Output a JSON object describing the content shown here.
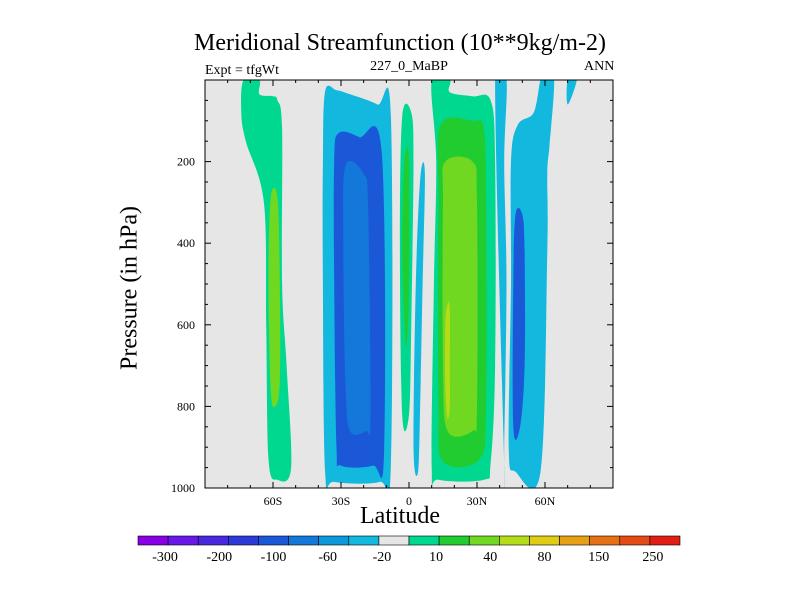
{
  "chart_data": {
    "type": "heatmap",
    "title": "Meridional Streamfunction (10**9kg/m-2)",
    "subtitle": "227_0_MaBP",
    "left_annotation": "Expt = tfgWt",
    "right_annotation": "ANN",
    "xlabel": "Latitude",
    "ylabel": "Pressure (in hPa)",
    "xlim": [
      -90,
      90
    ],
    "ylim": [
      1000,
      0
    ],
    "x_ticks": [
      {
        "value": -60,
        "label": "60S"
      },
      {
        "value": -30,
        "label": "30S"
      },
      {
        "value": 0,
        "label": "0"
      },
      {
        "value": 30,
        "label": "30N"
      },
      {
        "value": 60,
        "label": "60N"
      }
    ],
    "y_ticks": [
      {
        "value": 200,
        "label": "200"
      },
      {
        "value": 400,
        "label": "400"
      },
      {
        "value": 600,
        "label": "600"
      },
      {
        "value": 800,
        "label": "800"
      },
      {
        "value": 1000,
        "label": "1000"
      }
    ],
    "background_color": "#e6e6e6",
    "colorbar": {
      "colors": [
        "#8a00e6",
        "#6a18e8",
        "#4a28e0",
        "#2c3ad8",
        "#1a58d8",
        "#1478da",
        "#0e98dc",
        "#12b8de",
        "#e6e6e6",
        "#00d890",
        "#20cc30",
        "#70d820",
        "#b4dc18",
        "#e0cc14",
        "#e6a014",
        "#e67014",
        "#e44a14",
        "#e01e14"
      ],
      "labels": [
        "-300",
        "-200",
        "-100",
        "-60",
        "-20",
        "10",
        "40",
        "80",
        "150",
        "250"
      ]
    },
    "contours": [
      {
        "level": 10,
        "color": "#00d890",
        "points": [
          [
            -73,
            0
          ],
          [
            -66,
            0
          ],
          [
            -66,
            35
          ],
          [
            -60,
            40
          ],
          [
            -58,
            50
          ],
          [
            -56,
            120
          ],
          [
            -56,
            500
          ],
          [
            -54,
            700
          ],
          [
            -52,
            950
          ],
          [
            -58,
            980
          ],
          [
            -62,
            930
          ],
          [
            -63,
            600
          ],
          [
            -64,
            300
          ],
          [
            -72,
            150
          ],
          [
            -74,
            80
          ]
        ]
      },
      {
        "level": 40,
        "color": "#70d820",
        "points": [
          [
            -61,
            290
          ],
          [
            -58,
            290
          ],
          [
            -57,
            500
          ],
          [
            -57,
            740
          ],
          [
            -59,
            800
          ],
          [
            -61,
            760
          ],
          [
            -62,
            500
          ]
        ]
      },
      {
        "level": -20,
        "color": "#12b8de",
        "points": [
          [
            -37,
            28
          ],
          [
            -32,
            25
          ],
          [
            -26,
            35
          ],
          [
            -14,
            60
          ],
          [
            -8,
            90
          ],
          [
            -8,
            940
          ],
          [
            -13,
            985
          ],
          [
            -33,
            985
          ],
          [
            -37,
            960
          ],
          [
            -38,
            500
          ],
          [
            -38,
            200
          ]
        ]
      },
      {
        "level": -60,
        "color": "#1a58d8",
        "points": [
          [
            -31,
            130
          ],
          [
            -22,
            140
          ],
          [
            -12,
            180
          ],
          [
            -11,
            910
          ],
          [
            -16,
            945
          ],
          [
            -30,
            945
          ],
          [
            -32,
            900
          ],
          [
            -33,
            500
          ],
          [
            -33,
            200
          ]
        ]
      },
      {
        "level": -100,
        "color": "#1478da",
        "points": [
          [
            -28,
            210
          ],
          [
            -20,
            230
          ],
          [
            -18,
            320
          ],
          [
            -17,
            820
          ],
          [
            -19,
            860
          ],
          [
            -26,
            860
          ],
          [
            -28,
            750
          ],
          [
            -29,
            400
          ]
        ]
      },
      {
        "level": 10,
        "color": "#00d890",
        "points": [
          [
            -3,
            90
          ],
          [
            1,
            80
          ],
          [
            2,
            200
          ],
          [
            1,
            600
          ],
          [
            0,
            820
          ],
          [
            -3,
            820
          ],
          [
            -4,
            400
          ]
        ]
      },
      {
        "level": 40,
        "color": "#20cc30",
        "points": [
          [
            -2,
            200
          ],
          [
            0,
            190
          ],
          [
            0,
            500
          ],
          [
            -1,
            650
          ],
          [
            -2,
            600
          ],
          [
            -3,
            400
          ]
        ]
      },
      {
        "level": -20,
        "color": "#12b8de",
        "points": [
          [
            5,
            240
          ],
          [
            7,
            230
          ],
          [
            6,
            500
          ],
          [
            5,
            780
          ],
          [
            4,
            960
          ],
          [
            2,
            900
          ],
          [
            3,
            500
          ]
        ]
      },
      {
        "level": 10,
        "color": "#00d890",
        "points": [
          [
            10,
            0
          ],
          [
            18,
            0
          ],
          [
            18,
            30
          ],
          [
            28,
            40
          ],
          [
            36,
            50
          ],
          [
            38,
            200
          ],
          [
            38,
            700
          ],
          [
            36,
            940
          ],
          [
            33,
            980
          ],
          [
            13,
            980
          ],
          [
            10,
            950
          ],
          [
            11,
            500
          ],
          [
            12,
            200
          ]
        ]
      },
      {
        "level": 40,
        "color": "#20cc30",
        "points": [
          [
            14,
            110
          ],
          [
            28,
            100
          ],
          [
            33,
            120
          ],
          [
            34,
            300
          ],
          [
            34,
            800
          ],
          [
            31,
            930
          ],
          [
            15,
            935
          ],
          [
            13,
            800
          ],
          [
            13,
            300
          ]
        ]
      },
      {
        "level": 80,
        "color": "#70d820",
        "points": [
          [
            16,
            200
          ],
          [
            28,
            200
          ],
          [
            30,
            300
          ],
          [
            30,
            800
          ],
          [
            28,
            860
          ],
          [
            17,
            860
          ],
          [
            15,
            700
          ],
          [
            15,
            300
          ]
        ]
      },
      {
        "level": 150,
        "color": "#b4dc18",
        "points": [
          [
            17,
            550
          ],
          [
            18,
            560
          ],
          [
            18,
            700
          ],
          [
            18,
            800
          ],
          [
            17,
            830
          ],
          [
            16,
            750
          ],
          [
            16,
            600
          ]
        ]
      },
      {
        "level": -20,
        "color": "#12b8de",
        "points": [
          [
            38,
            0
          ],
          [
            43,
            0
          ],
          [
            42,
            200
          ],
          [
            43,
            500
          ],
          [
            42,
            900
          ],
          [
            42,
            940
          ]
        ]
      },
      {
        "level": -20,
        "color": "#12b8de",
        "points": [
          [
            60,
            0
          ],
          [
            64,
            0
          ],
          [
            62,
            160
          ],
          [
            61,
            230
          ],
          [
            61,
            420
          ],
          [
            58,
            960
          ],
          [
            47,
            960
          ],
          [
            44,
            900
          ],
          [
            45,
            500
          ],
          [
            45,
            200
          ],
          [
            48,
            110
          ],
          [
            55,
            80
          ],
          [
            58,
            0
          ]
        ]
      },
      {
        "level": -60,
        "color": "#1a58d8",
        "points": [
          [
            47,
            330
          ],
          [
            50,
            330
          ],
          [
            51,
            420
          ],
          [
            51,
            700
          ],
          [
            49,
            850
          ],
          [
            46,
            850
          ],
          [
            46,
            500
          ]
        ]
      },
      {
        "level": -20,
        "color": "#12b8de",
        "points": [
          [
            70,
            0
          ],
          [
            74,
            0
          ],
          [
            70,
            60
          ]
        ]
      }
    ]
  }
}
